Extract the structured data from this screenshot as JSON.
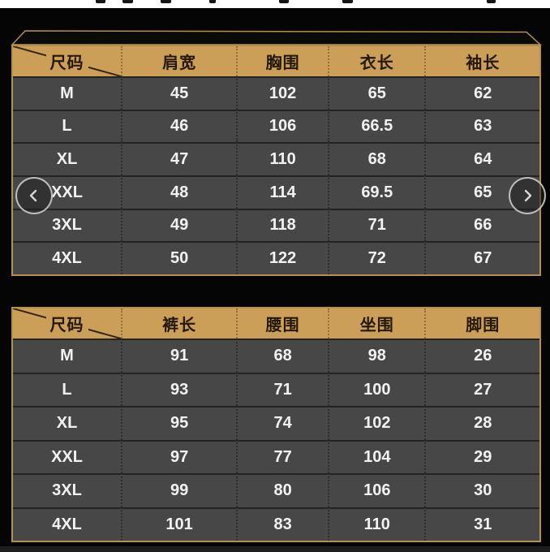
{
  "colors": {
    "backdrop": "#050505",
    "header_bg": "#cb9f58",
    "header_text": "#241808",
    "border": "#b3914f",
    "row_bg": "#474747",
    "row_text": "#f2f2f2",
    "lid_fill": "#0a0a0a"
  },
  "icons": {
    "prev": "chevron-left",
    "next": "chevron-right"
  },
  "tables": [
    {
      "corner_label": "尺码",
      "columns": [
        "肩宽",
        "胸围",
        "衣长",
        "袖长"
      ],
      "rows": [
        {
          "size": "M",
          "values": [
            "45",
            "102",
            "65",
            "62"
          ]
        },
        {
          "size": "L",
          "values": [
            "46",
            "106",
            "66.5",
            "63"
          ]
        },
        {
          "size": "XL",
          "values": [
            "47",
            "110",
            "68",
            "64"
          ]
        },
        {
          "size": "XXL",
          "values": [
            "48",
            "114",
            "69.5",
            "65"
          ]
        },
        {
          "size": "3XL",
          "values": [
            "49",
            "118",
            "71",
            "66"
          ]
        },
        {
          "size": "4XL",
          "values": [
            "50",
            "122",
            "72",
            "67"
          ]
        }
      ]
    },
    {
      "corner_label": "尺码",
      "columns": [
        "裤长",
        "腰围",
        "坐围",
        "脚围"
      ],
      "rows": [
        {
          "size": "M",
          "values": [
            "91",
            "68",
            "98",
            "26"
          ]
        },
        {
          "size": "L",
          "values": [
            "93",
            "71",
            "100",
            "27"
          ]
        },
        {
          "size": "XL",
          "values": [
            "95",
            "74",
            "102",
            "28"
          ]
        },
        {
          "size": "XXL",
          "values": [
            "97",
            "77",
            "104",
            "29"
          ]
        },
        {
          "size": "3XL",
          "values": [
            "99",
            "80",
            "106",
            "30"
          ]
        },
        {
          "size": "4XL",
          "values": [
            "101",
            "83",
            "110",
            "31"
          ]
        }
      ]
    }
  ]
}
